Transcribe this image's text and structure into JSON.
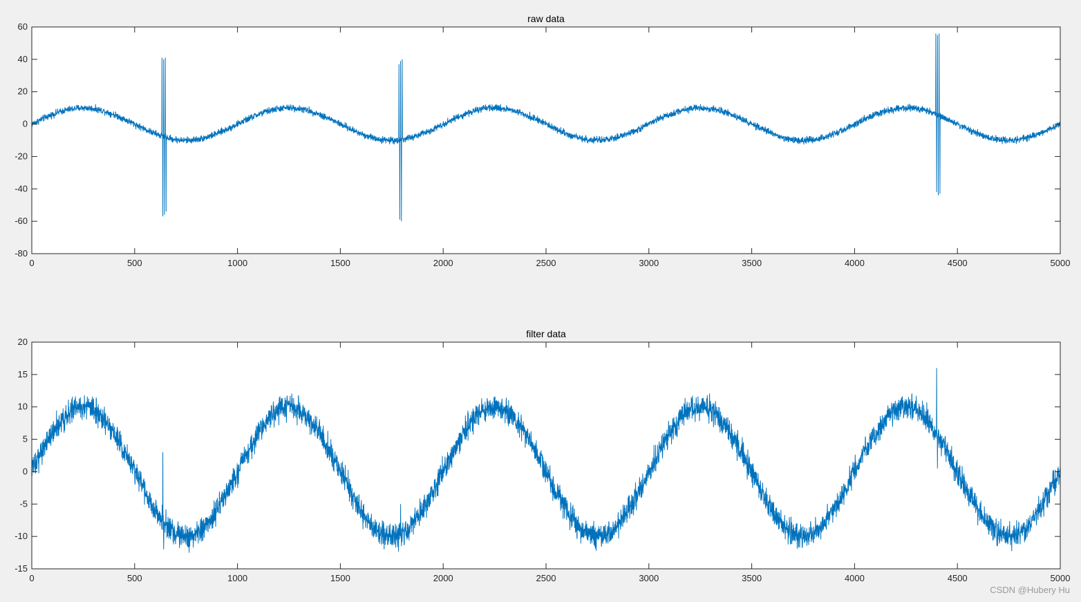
{
  "watermark": "CSDN @Hubery Hu",
  "colors": {
    "line": "#0072bd",
    "axes_bg": "#ffffff",
    "figure_bg": "#f0f0f0",
    "axis_line": "#262626"
  },
  "chart_data": [
    {
      "type": "line",
      "title": "raw data",
      "xlabel": "",
      "ylabel": "",
      "xlim": [
        0,
        5000
      ],
      "ylim": [
        -80,
        60
      ],
      "x_ticks": [
        0,
        500,
        1000,
        1500,
        2000,
        2500,
        3000,
        3500,
        4000,
        4500,
        5000
      ],
      "x_tick_labels": [
        "0",
        "500",
        "1000",
        "1500",
        "2000",
        "2500",
        "3000",
        "3500",
        "4000",
        "4500",
        "5000"
      ],
      "y_ticks": [
        -80,
        -60,
        -40,
        -20,
        0,
        20,
        40,
        60
      ],
      "y_tick_labels": [
        "-80",
        "-60",
        "-40",
        "-20",
        "0",
        "20",
        "40",
        "60"
      ],
      "grid": false,
      "series": [
        {
          "samples": 5000,
          "sine": {
            "amplitude": 10,
            "period": 1000,
            "phase": 0
          },
          "noise_amplitude": 1.3,
          "spikes": [
            {
              "x": 633,
              "y": 41
            },
            {
              "x": 637,
              "y": -57
            },
            {
              "x": 641,
              "y": 40
            },
            {
              "x": 645,
              "y": -56
            },
            {
              "x": 649,
              "y": 41
            },
            {
              "x": 653,
              "y": -54
            },
            {
              "x": 1785,
              "y": 37
            },
            {
              "x": 1789,
              "y": -59
            },
            {
              "x": 1793,
              "y": 39
            },
            {
              "x": 1797,
              "y": -60
            },
            {
              "x": 1801,
              "y": 40
            },
            {
              "x": 4395,
              "y": 56
            },
            {
              "x": 4399,
              "y": -42
            },
            {
              "x": 4403,
              "y": 55
            },
            {
              "x": 4407,
              "y": -44
            },
            {
              "x": 4411,
              "y": 56
            },
            {
              "x": 4415,
              "y": -43
            }
          ]
        }
      ]
    },
    {
      "type": "line",
      "title": "filter data",
      "xlabel": "",
      "ylabel": "",
      "xlim": [
        0,
        5000
      ],
      "ylim": [
        -15,
        20
      ],
      "x_ticks": [
        0,
        500,
        1000,
        1500,
        2000,
        2500,
        3000,
        3500,
        4000,
        4500,
        5000
      ],
      "x_tick_labels": [
        "0",
        "500",
        "1000",
        "1500",
        "2000",
        "2500",
        "3000",
        "3500",
        "4000",
        "4500",
        "5000"
      ],
      "y_ticks": [
        -15,
        -10,
        -5,
        0,
        5,
        10,
        15,
        20
      ],
      "y_tick_labels": [
        "-15",
        "-10",
        "-5",
        "0",
        "5",
        "10",
        "15",
        "20"
      ],
      "grid": false,
      "series": [
        {
          "samples": 5000,
          "sine": {
            "amplitude": 10,
            "period": 1000,
            "phase": 0
          },
          "noise_amplitude": 1.2,
          "spikes": [
            {
              "x": 637,
              "y": 3
            },
            {
              "x": 641,
              "y": -12
            },
            {
              "x": 1793,
              "y": -5
            },
            {
              "x": 1801,
              "y": -10
            },
            {
              "x": 4399,
              "y": 16
            },
            {
              "x": 4403,
              "y": 0.5
            }
          ]
        }
      ]
    }
  ]
}
